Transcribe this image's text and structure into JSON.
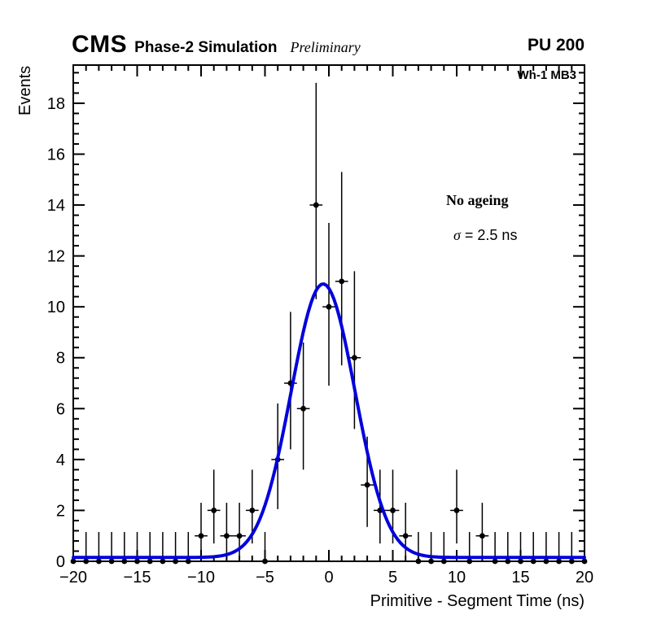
{
  "header": {
    "experiment": "CMS",
    "simulation": "Phase-2 Simulation",
    "preliminary": "Preliminary",
    "pileup": "PU 200"
  },
  "region_label": "Wh-1 MB3",
  "chart_data": {
    "type": "scatter",
    "title": "",
    "xlabel": "Primitive - Segment Time (ns)",
    "ylabel": "Events",
    "xlim": [
      -20,
      20
    ],
    "ylim": [
      0,
      19.5
    ],
    "grid": false,
    "legend": "none",
    "x_major_ticks": {
      "values": [
        -20,
        -15,
        -10,
        -5,
        0,
        5,
        10,
        15,
        20
      ],
      "labels": [
        "−20",
        "−15",
        "−10",
        "−5",
        "0",
        "5",
        "10",
        "15",
        "20"
      ]
    },
    "x_minor_step": 1,
    "y_major_ticks": {
      "values": [
        0,
        2,
        4,
        6,
        8,
        10,
        12,
        14,
        16,
        18
      ],
      "labels": [
        "0",
        "2",
        "4",
        "6",
        "8",
        "10",
        "12",
        "14",
        "16",
        "18"
      ]
    },
    "y_minor_step": 0.4,
    "annotations": [
      {
        "text": "No ageing"
      },
      {
        "symbol": "σ",
        "text": " = 2.5 ns"
      }
    ],
    "series": [
      {
        "name": "data",
        "style": "errorbar",
        "marker": "filled-circle",
        "marker_color": "#000000",
        "x_half_width": 0.5,
        "points_format": [
          "x",
          "y",
          "err_low",
          "err_high"
        ],
        "points": [
          [
            -20,
            0,
            0,
            1.15
          ],
          [
            -19,
            0,
            0,
            1.15
          ],
          [
            -18,
            0,
            0,
            1.15
          ],
          [
            -17,
            0,
            0,
            1.15
          ],
          [
            -16,
            0,
            0,
            1.15
          ],
          [
            -15,
            0,
            0,
            1.15
          ],
          [
            -14,
            0,
            0,
            1.15
          ],
          [
            -13,
            0,
            0,
            1.15
          ],
          [
            -12,
            0,
            0,
            1.15
          ],
          [
            -11,
            0,
            0,
            1.15
          ],
          [
            -10,
            1,
            0.85,
            1.3
          ],
          [
            -9,
            2,
            1.3,
            1.6
          ],
          [
            -8,
            1,
            0.85,
            1.3
          ],
          [
            -7,
            1,
            0.85,
            1.3
          ],
          [
            -6,
            2,
            1.3,
            1.6
          ],
          [
            -5,
            0,
            0,
            1.15
          ],
          [
            -4,
            4,
            1.95,
            2.2
          ],
          [
            -3,
            7,
            2.6,
            2.8
          ],
          [
            -2,
            6,
            2.4,
            2.6
          ],
          [
            -1,
            14,
            3.7,
            4.8
          ],
          [
            0,
            10,
            3.1,
            3.3
          ],
          [
            1,
            11,
            3.3,
            4.3
          ],
          [
            2,
            8,
            2.8,
            3.4
          ],
          [
            3,
            3,
            1.65,
            1.9
          ],
          [
            4,
            2,
            1.3,
            1.6
          ],
          [
            5,
            2,
            1.3,
            1.6
          ],
          [
            6,
            1,
            0.85,
            1.3
          ],
          [
            7,
            0,
            0,
            1.15
          ],
          [
            8,
            0,
            0,
            1.15
          ],
          [
            9,
            0,
            0,
            1.15
          ],
          [
            10,
            2,
            1.3,
            1.6
          ],
          [
            11,
            0,
            0,
            1.15
          ],
          [
            12,
            1,
            0.85,
            1.3
          ],
          [
            13,
            0,
            0,
            1.15
          ],
          [
            14,
            0,
            0,
            1.15
          ],
          [
            15,
            0,
            0,
            1.15
          ],
          [
            16,
            0,
            0,
            1.15
          ],
          [
            17,
            0,
            0,
            1.15
          ],
          [
            18,
            0,
            0,
            1.15
          ],
          [
            19,
            0,
            0,
            1.15
          ],
          [
            20,
            0,
            0,
            1.15
          ]
        ]
      },
      {
        "name": "gaussian-fit",
        "style": "function",
        "function": "offset + amplitude * exp(-0.5*((x-mean)/sigma)^2)",
        "amplitude": 10.75,
        "mean": -0.45,
        "sigma": 2.5,
        "offset": 0.15,
        "color": "#0000dd",
        "line_width": 4
      }
    ]
  }
}
